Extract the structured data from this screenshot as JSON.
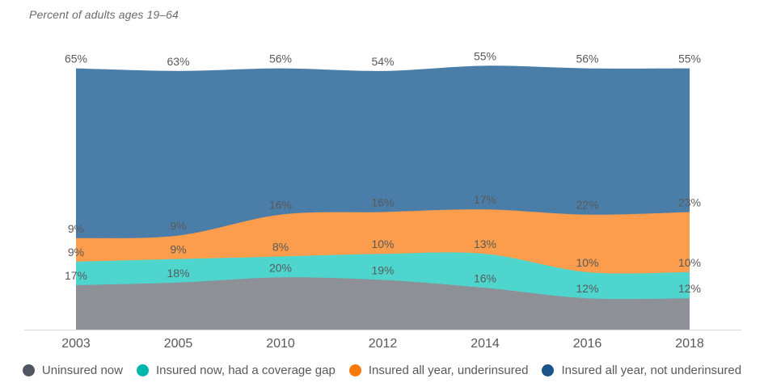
{
  "chart_data": {
    "type": "area",
    "stacked": true,
    "title": "Percent of adults ages 19–64",
    "xlabel": "",
    "ylabel": "",
    "x": [
      "2003",
      "2005",
      "2010",
      "2012",
      "2014",
      "2016",
      "2018"
    ],
    "series": [
      {
        "name": "Uninsured now",
        "area_color": "#8d9096",
        "legend_color": "#515762",
        "values": [
          17,
          18,
          20,
          19,
          16,
          12,
          12
        ]
      },
      {
        "name": "Insured now, had a coverage gap",
        "area_color": "#4ed6ce",
        "legend_color": "#00b5ad",
        "values": [
          9,
          9,
          8,
          10,
          13,
          10,
          10
        ]
      },
      {
        "name": "Insured all year, underinsured",
        "area_color": "#fb9d4c",
        "legend_color": "#f8790a",
        "values": [
          9,
          9,
          16,
          16,
          17,
          22,
          23
        ]
      },
      {
        "name": "Insured all year, not underinsured",
        "area_color": "#4a7ea9",
        "legend_color": "#1a5488",
        "values": [
          65,
          63,
          56,
          54,
          55,
          56,
          55
        ]
      }
    ],
    "data_label_suffix": "%",
    "ylim": [
      0,
      101
    ],
    "grid": false,
    "legend_position": "bottom",
    "axis_line_color": "#d8d8d8",
    "label_text_color": "#595959",
    "axis_text_color": "#595959"
  }
}
